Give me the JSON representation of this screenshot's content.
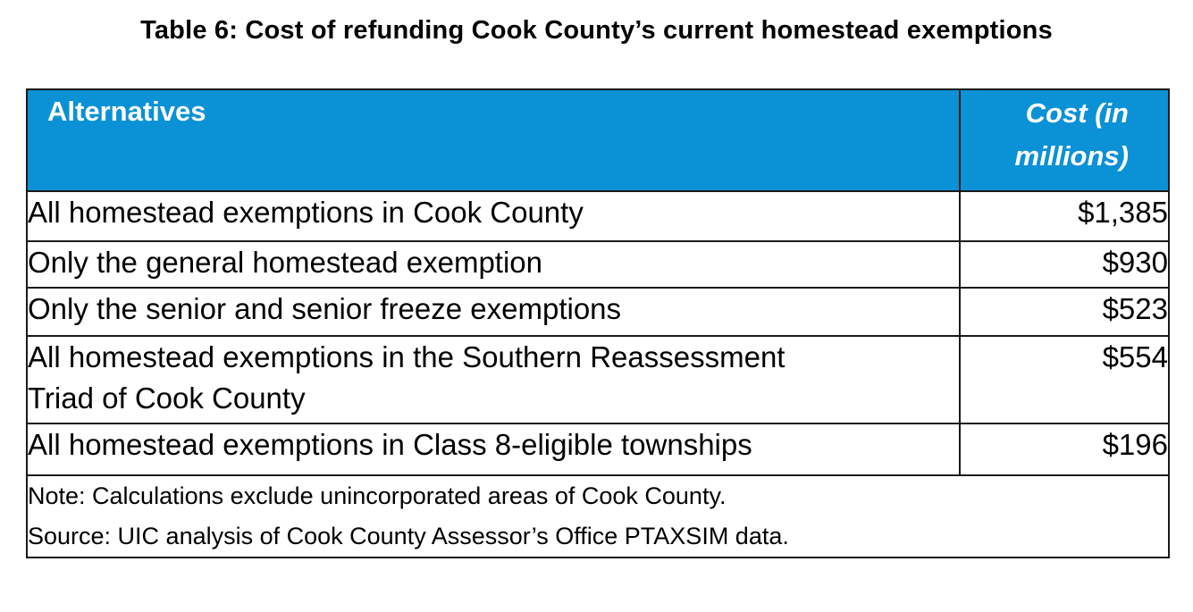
{
  "title": "Table 6: Cost of refunding Cook County’s current homestead exemptions",
  "table": {
    "headers": {
      "alternatives": "Alternatives",
      "cost_line1": "Cost (in",
      "cost_line2": "millions)"
    },
    "header_color": "#0b91d5",
    "rows": [
      {
        "alternative": "All homestead exemptions in Cook County",
        "cost": "$1,385"
      },
      {
        "alternative": "Only the general homestead exemption",
        "cost": "$930"
      },
      {
        "alternative": "Only the senior and senior freeze exemptions",
        "cost": "$523"
      },
      {
        "alternative_line1": "All homestead exemptions in the Southern Reassessment",
        "alternative_line2": "Triad of Cook County",
        "cost": "$554"
      },
      {
        "alternative": "All homestead exemptions in Class 8-eligible townships",
        "cost": "$196"
      }
    ],
    "note": "Note: Calculations  exclude unincorporated areas of Cook County.",
    "source": "Source: UIC analysis of Cook County Assessor’s Office PTAXSIM data."
  }
}
